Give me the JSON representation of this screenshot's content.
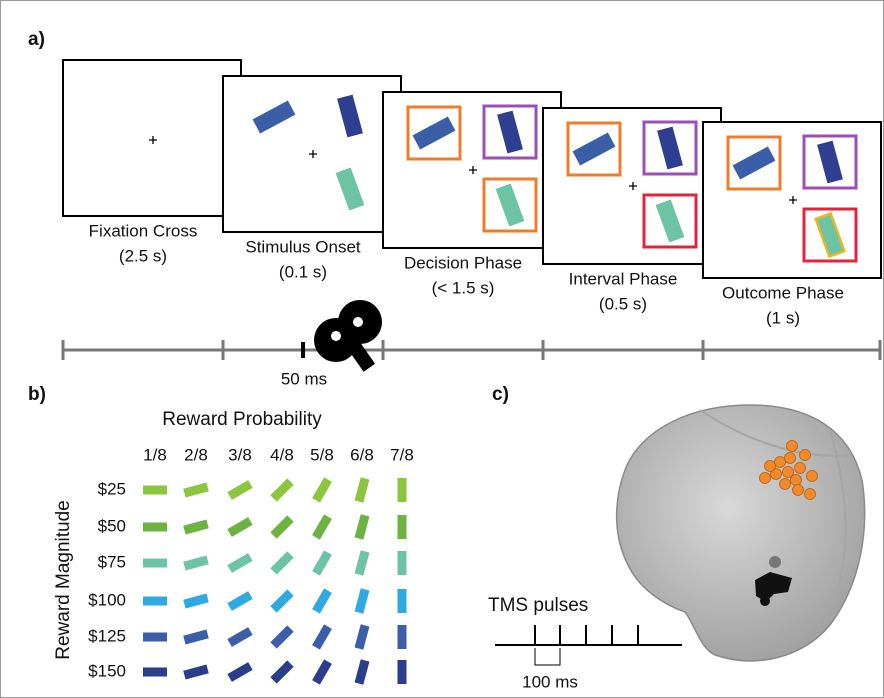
{
  "panels": {
    "a": "a)",
    "b": "b)",
    "c": "c)"
  },
  "phases": [
    {
      "name": "Fixation Cross",
      "duration": "(2.5 s)"
    },
    {
      "name": "Stimulus Onset",
      "duration": "(0.1 s)"
    },
    {
      "name": "Decision Phase",
      "duration": "(< 1.5 s)"
    },
    {
      "name": "Interval Phase",
      "duration": "(0.5 s)"
    },
    {
      "name": "Outcome Phase",
      "duration": "(1 s)"
    }
  ],
  "timeline": {
    "pulse_delay": "50 ms"
  },
  "reward": {
    "title": "Reward Probability",
    "axis_label": "Reward Magnitude",
    "probabilities": [
      "1/8",
      "2/8",
      "3/8",
      "4/8",
      "5/8",
      "6/8",
      "7/8"
    ],
    "magnitudes": [
      "$25",
      "$50",
      "$75",
      "$100",
      "$125",
      "$150"
    ]
  },
  "tms": {
    "title": "TMS pulses",
    "interval": "100 ms"
  }
}
